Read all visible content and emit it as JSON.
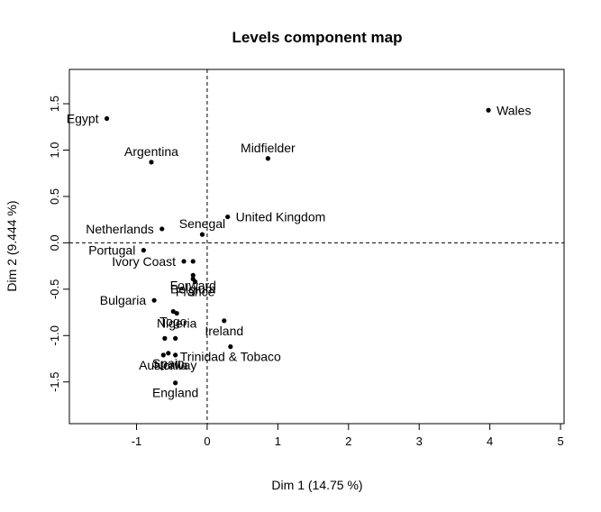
{
  "chart_data": {
    "type": "scatter",
    "title": "Levels component map",
    "xlabel": "Dim 1 (14.75 %)",
    "ylabel": "Dim 2 (9.444 %)",
    "xlim": [
      -1.95,
      5.05
    ],
    "ylim": [
      -1.95,
      1.87
    ],
    "xticks": [
      "-1",
      "0",
      "1",
      "2",
      "3",
      "4",
      "5"
    ],
    "yticks": [
      "-1.5",
      "-1.0",
      "-0.5",
      "0.0",
      "0.5",
      "1.0",
      "1.5"
    ],
    "xtick_values": [
      -1,
      0,
      1,
      2,
      3,
      4,
      5
    ],
    "ytick_values": [
      -1.5,
      -1.0,
      -0.5,
      0.0,
      0.5,
      1.0,
      1.5
    ],
    "reference_lines": {
      "x": 0,
      "y": 0,
      "style": "dashed"
    },
    "grid": false,
    "points": [
      {
        "label": "Wales",
        "x": 3.98,
        "y": 1.43,
        "pos": "right"
      },
      {
        "label": "Egypt",
        "x": -1.42,
        "y": 1.34,
        "pos": "left"
      },
      {
        "label": "Argentina",
        "x": -0.79,
        "y": 0.87,
        "pos": "above"
      },
      {
        "label": "Midfielder",
        "x": 0.86,
        "y": 0.91,
        "pos": "above"
      },
      {
        "label": "United Kingdom",
        "x": 0.29,
        "y": 0.28,
        "pos": "right"
      },
      {
        "label": "Senegal",
        "x": -0.07,
        "y": 0.09,
        "pos": "above"
      },
      {
        "label": "Netherlands",
        "x": -0.64,
        "y": 0.15,
        "pos": "left"
      },
      {
        "label": "Portugal",
        "x": -0.9,
        "y": -0.08,
        "pos": "left"
      },
      {
        "label": "Ivory Coast",
        "x": -0.33,
        "y": -0.2,
        "pos": "left"
      },
      {
        "label": "",
        "x": -0.2,
        "y": -0.2,
        "pos": "none"
      },
      {
        "label": "Forward",
        "x": -0.2,
        "y": -0.35,
        "pos": "below"
      },
      {
        "label": "Belgium",
        "x": -0.2,
        "y": -0.39,
        "pos": "below"
      },
      {
        "label": "France",
        "x": -0.17,
        "y": -0.42,
        "pos": "below"
      },
      {
        "label": "Bulgaria",
        "x": -0.75,
        "y": -0.62,
        "pos": "left"
      },
      {
        "label": "Togo",
        "x": -0.48,
        "y": -0.74,
        "pos": "below"
      },
      {
        "label": "Nigeria",
        "x": -0.43,
        "y": -0.76,
        "pos": "below"
      },
      {
        "label": "Ireland",
        "x": 0.24,
        "y": -0.84,
        "pos": "below"
      },
      {
        "label": "",
        "x": -0.6,
        "y": -1.03,
        "pos": "none"
      },
      {
        "label": "",
        "x": -0.45,
        "y": -1.03,
        "pos": "none"
      },
      {
        "label": "Spain",
        "x": -0.55,
        "y": -1.19,
        "pos": "below"
      },
      {
        "label": "Norway",
        "x": -0.45,
        "y": -1.21,
        "pos": "below"
      },
      {
        "label": "Trinidad & Tobaco",
        "x": 0.33,
        "y": -1.12,
        "pos": "below"
      },
      {
        "label": "Australia",
        "x": -0.62,
        "y": -1.21,
        "pos": "below"
      },
      {
        "label": "England",
        "x": -0.45,
        "y": -1.51,
        "pos": "below"
      }
    ]
  }
}
